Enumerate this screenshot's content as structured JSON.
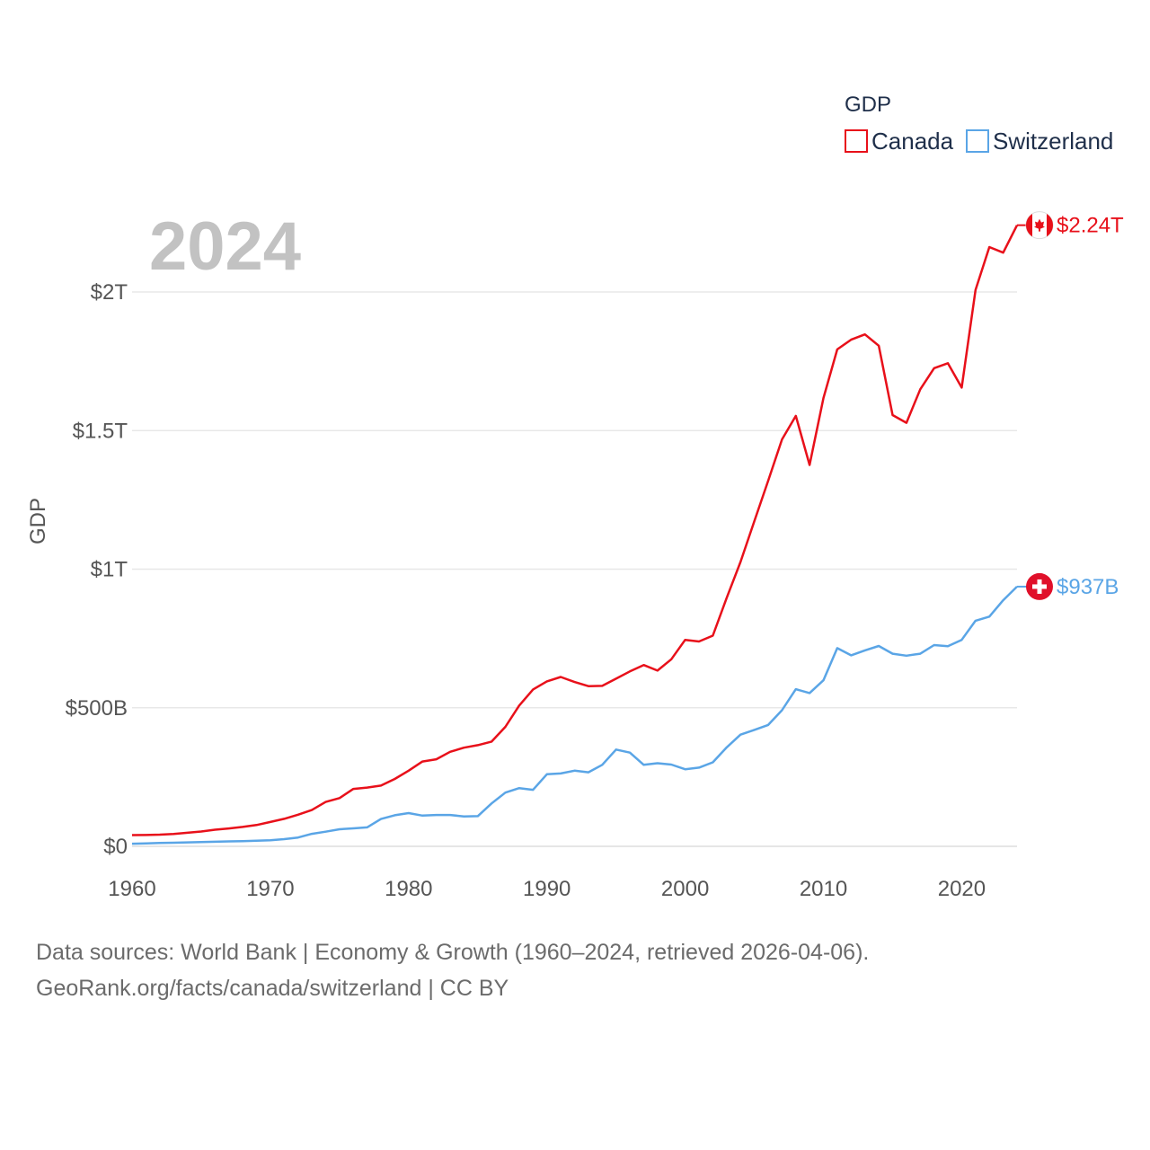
{
  "chart_data": {
    "type": "line",
    "title": "",
    "year_label": "2024",
    "xlabel": "",
    "ylabel": "GDP",
    "legend_title": "GDP",
    "legend_position": "top-right",
    "xlim": [
      1960,
      2024
    ],
    "ylim": [
      0,
      2300000000000
    ],
    "x_ticks": [
      {
        "value": 1960,
        "label": "1960"
      },
      {
        "value": 1970,
        "label": "1970"
      },
      {
        "value": 1980,
        "label": "1980"
      },
      {
        "value": 1990,
        "label": "1990"
      },
      {
        "value": 2000,
        "label": "2000"
      },
      {
        "value": 2010,
        "label": "2010"
      },
      {
        "value": 2020,
        "label": "2020"
      }
    ],
    "y_ticks": [
      {
        "value": 0,
        "label": "$0"
      },
      {
        "value": 500000000000,
        "label": "$500B"
      },
      {
        "value": 1000000000000,
        "label": "$1T"
      },
      {
        "value": 1500000000000,
        "label": "$1.5T"
      },
      {
        "value": 2000000000000,
        "label": "$2T"
      }
    ],
    "grid": true,
    "x": [
      1960,
      1961,
      1962,
      1963,
      1964,
      1965,
      1966,
      1967,
      1968,
      1969,
      1970,
      1971,
      1972,
      1973,
      1974,
      1975,
      1976,
      1977,
      1978,
      1979,
      1980,
      1981,
      1982,
      1983,
      1984,
      1985,
      1986,
      1987,
      1988,
      1989,
      1990,
      1991,
      1992,
      1993,
      1994,
      1995,
      1996,
      1997,
      1998,
      1999,
      2000,
      2001,
      2002,
      2003,
      2004,
      2005,
      2006,
      2007,
      2008,
      2009,
      2010,
      2011,
      2012,
      2013,
      2014,
      2015,
      2016,
      2017,
      2018,
      2019,
      2020,
      2021,
      2022,
      2023,
      2024
    ],
    "series": [
      {
        "name": "Canada",
        "color": "#e8101a",
        "end_label": "$2.24T",
        "flag": "canada-flag",
        "values": [
          40.5,
          40.9,
          42.2,
          44.8,
          48.9,
          53.5,
          60.0,
          64.4,
          69.9,
          76.7,
          87.9,
          99.3,
          114.0,
          131.0,
          160.0,
          174.0,
          207.0,
          212.0,
          219.0,
          243.0,
          273.0,
          306.0,
          314.0,
          341.0,
          356.0,
          365.0,
          378.0,
          431.0,
          508.0,
          566.0,
          595.0,
          611.0,
          593.0,
          578.0,
          579.0,
          605.0,
          631.0,
          654.0,
          634.0,
          675.0,
          745.0,
          739.0,
          760.0,
          896.0,
          1026.0,
          1173.0,
          1319.0,
          1468.0,
          1553.0,
          1376.0,
          1617.0,
          1793.0,
          1828.0,
          1847.0,
          1806.0,
          1556.0,
          1528.0,
          1649.0,
          1725.0,
          1743.0,
          1655.0,
          2007.0,
          2162.0,
          2142.0,
          2241.0
        ]
      },
      {
        "name": "Switzerland",
        "color": "#5aa5e6",
        "end_label": "$937B",
        "flag": "switzerland-flag",
        "values": [
          9.5,
          10.7,
          11.9,
          12.9,
          14.3,
          15.3,
          16.4,
          17.7,
          18.9,
          20.4,
          21.9,
          26.0,
          31.8,
          45.1,
          52.8,
          61.7,
          64.8,
          68.3,
          98.7,
          112.0,
          120.0,
          111.0,
          113.0,
          113.0,
          108.0,
          109.0,
          155.0,
          194.0,
          210.0,
          204.0,
          260.0,
          263.0,
          273.0,
          267.0,
          294.0,
          349.0,
          338.0,
          294.0,
          300.0,
          295.0,
          278.0,
          284.0,
          303.0,
          357.0,
          403.0,
          420.0,
          438.0,
          491.0,
          567.0,
          553.0,
          599.0,
          715.0,
          689.0,
          707.0,
          723.0,
          695.0,
          688.0,
          695.0,
          726.0,
          722.0,
          745.0,
          814.0,
          829.0,
          888.0,
          937.0
        ]
      }
    ]
  },
  "footer": {
    "line1": "Data sources: World Bank | Economy & Growth (1960–2024, retrieved 2026-04-06).",
    "line2": "GeoRank.org/facts/canada/switzerland | CC BY"
  }
}
